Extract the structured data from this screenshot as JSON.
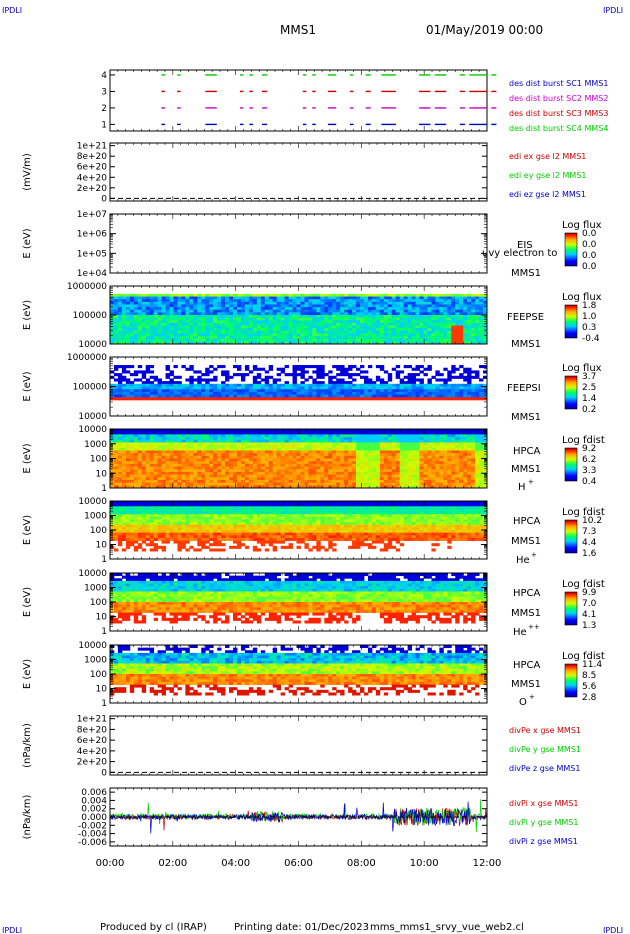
{
  "header": {
    "corner_left": "IPDLI",
    "corner_right": "IPDLI",
    "mission": "MMS1",
    "datetime": "01/May/2019 00:00"
  },
  "footer": {
    "produced_by": "Produced by cl (IRAP)",
    "printing_date": "Printing date: 01/Dec/2023",
    "filename": "mms_mms1_srvy_vue_web2.cl",
    "corner_left": "IPDLI",
    "corner_right": "IPDLI"
  },
  "colors": {
    "blue": "#0000cc",
    "magenta": "#cc00cc",
    "red": "#cc0000",
    "green": "#00cc00",
    "black": "#000000"
  },
  "chart_data": [
    {
      "type": "line",
      "panel": "burst",
      "ytick_labels": [
        "4",
        "3",
        "2",
        "1"
      ],
      "yticks": [
        4,
        3,
        2,
        1
      ],
      "ylim": [
        0.6,
        4.3
      ],
      "legend": [
        {
          "name": "des dist burst SC1 MMS1",
          "color": "#0000cc"
        },
        {
          "name": "des dist burst SC2 MMS2",
          "color": "#cc00cc"
        },
        {
          "name": "des dist burst SC3 MMS3",
          "color": "#cc0000"
        },
        {
          "name": "des dist burst SC4 MMS4",
          "color": "#00cc00"
        }
      ],
      "burst_intervals_hours": [
        [
          1.0,
          1.05
        ],
        [
          1.5,
          1.55
        ],
        [
          2.4,
          2.7
        ],
        [
          3.5,
          3.55
        ],
        [
          3.8,
          3.85
        ],
        [
          4.2,
          4.3
        ],
        [
          5.5,
          5.55
        ],
        [
          5.8,
          5.85
        ],
        [
          6.3,
          6.5
        ],
        [
          7.0,
          7.05
        ],
        [
          7.5,
          7.6
        ],
        [
          8.0,
          8.4
        ],
        [
          9.2,
          9.5
        ],
        [
          9.7,
          10.0
        ],
        [
          10.5,
          10.6
        ],
        [
          10.8,
          11.3
        ],
        [
          11.5,
          11.6
        ]
      ]
    },
    {
      "type": "line",
      "panel": "edi",
      "ylabel": "(mV/m)",
      "ytick_labels": [
        "1e+21",
        "8e+20",
        "6e+20",
        "4e+20",
        "2e+20",
        "0"
      ],
      "yticks": [
        1e+21,
        8e+20,
        6e+20,
        4e+20,
        2e+20,
        0
      ],
      "ylim": [
        -5e+19,
        1.05e+21
      ],
      "legend": [
        {
          "name": "edi ex gse l2 MMS1",
          "color": "#cc0000"
        },
        {
          "name": "edi ey gse l2 MMS1",
          "color": "#00cc00"
        },
        {
          "name": "edi ez gse l2 MMS1",
          "color": "#0000cc"
        }
      ]
    },
    {
      "type": "heatmap",
      "panel": "eis",
      "ylabel": "E (eV)",
      "ytick_labels": [
        "1e+07",
        "1e+06",
        "1e+05",
        "1e+04"
      ],
      "yticks": [
        10000000.0,
        1000000.0,
        100000.0,
        10000.0
      ],
      "instrument": "EIS",
      "overlay_text": "uvy electron to",
      "spacecraft": "MMS1",
      "colorbar_title": "Log flux",
      "colorbar_ticks": [
        "0.0",
        "0.0",
        "0.0",
        "0.0"
      ]
    },
    {
      "type": "heatmap",
      "panel": "feepse",
      "ylabel": "E (eV)",
      "ytick_labels": [
        "1000000",
        "100000",
        "10000"
      ],
      "yticks": [
        1000000.0,
        100000.0,
        10000.0
      ],
      "instrument": "FEEPSE",
      "spacecraft": "MMS1",
      "colorbar_title": "Log flux",
      "colorbar_ticks": [
        "1.8",
        "1.0",
        "0.3",
        "-0.4"
      ]
    },
    {
      "type": "heatmap",
      "panel": "feepsi",
      "ylabel": "E (eV)",
      "ytick_labels": [
        "1000000",
        "100000",
        "10000"
      ],
      "yticks": [
        1000000.0,
        100000.0,
        10000.0
      ],
      "instrument": "FEEPSI",
      "spacecraft": "MMS1",
      "colorbar_title": "Log flux",
      "colorbar_ticks": [
        "3.7",
        "2.5",
        "1.4",
        "0.2"
      ]
    },
    {
      "type": "heatmap",
      "panel": "hpca-h",
      "ylabel": "E (eV)",
      "ytick_labels": [
        "10000",
        "1000",
        "100",
        "10",
        "1"
      ],
      "yticks": [
        10000,
        1000,
        100,
        10,
        1
      ],
      "instrument": "HPCA",
      "spacecraft": "MMS1",
      "species": "H",
      "species_sup": "+",
      "colorbar_title": "Log fdist",
      "colorbar_ticks": [
        "9.2",
        "6.2",
        "3.3",
        "0.4"
      ]
    },
    {
      "type": "heatmap",
      "panel": "hpca-he",
      "ylabel": "E (eV)",
      "ytick_labels": [
        "10000",
        "1000",
        "100",
        "10",
        "1"
      ],
      "yticks": [
        10000,
        1000,
        100,
        10,
        1
      ],
      "instrument": "HPCA",
      "spacecraft": "MMS1",
      "species": "He",
      "species_sup": "+",
      "colorbar_title": "Log fdist",
      "colorbar_ticks": [
        "10.2",
        "7.3",
        "4.4",
        "1.6"
      ]
    },
    {
      "type": "heatmap",
      "panel": "hpca-hepp",
      "ylabel": "E (eV)",
      "ytick_labels": [
        "10000",
        "1000",
        "100",
        "10",
        "1"
      ],
      "yticks": [
        10000,
        1000,
        100,
        10,
        1
      ],
      "instrument": "HPCA",
      "spacecraft": "MMS1",
      "species": "He",
      "species_sup": "++",
      "colorbar_title": "Log fdist",
      "colorbar_ticks": [
        "9.9",
        "7.0",
        "4.1",
        "1.3"
      ]
    },
    {
      "type": "heatmap",
      "panel": "hpca-o",
      "ylabel": "E (eV)",
      "ytick_labels": [
        "10000",
        "1000",
        "100",
        "10",
        "1"
      ],
      "yticks": [
        10000,
        1000,
        100,
        10,
        1
      ],
      "instrument": "HPCA",
      "spacecraft": "MMS1",
      "species": "O",
      "species_sup": "+",
      "colorbar_title": "Log fdist",
      "colorbar_ticks": [
        "11.4",
        "8.5",
        "5.6",
        "2.8"
      ]
    },
    {
      "type": "line",
      "panel": "divpe",
      "ylabel": "(nPa/km)",
      "ytick_labels": [
        "1e+21",
        "8e+20",
        "6e+20",
        "4e+20",
        "2e+20",
        "0"
      ],
      "yticks": [
        1e+21,
        8e+20,
        6e+20,
        4e+20,
        2e+20,
        0
      ],
      "ylim": [
        -5e+19,
        1.05e+21
      ],
      "legend": [
        {
          "name": "divPe x gse MMS1",
          "color": "#cc0000"
        },
        {
          "name": "divPe y gse MMS1",
          "color": "#00cc00"
        },
        {
          "name": "divPe z gse MMS1",
          "color": "#0000cc"
        }
      ]
    },
    {
      "type": "line",
      "panel": "divpi",
      "ylabel": "(nPa/km)",
      "ytick_labels": [
        "0.006",
        "0.004",
        "0.002",
        "0.000",
        "-0.002",
        "-0.004",
        "-0.006"
      ],
      "yticks": [
        0.006,
        0.004,
        0.002,
        0.0,
        -0.002,
        -0.004,
        -0.006
      ],
      "ylim": [
        -0.007,
        0.007
      ],
      "legend": [
        {
          "name": "divPi x gse MMS1",
          "color": "#cc0000"
        },
        {
          "name": "divPi y gse MMS1",
          "color": "#00cc00"
        },
        {
          "name": "divPi z gse MMS1",
          "color": "#0000cc"
        }
      ]
    }
  ],
  "x_axis": {
    "tick_labels": [
      "00:00",
      "02:00",
      "04:00",
      "06:00",
      "08:00",
      "10:00",
      "12:00"
    ],
    "xlim_hours": [
      0,
      12
    ]
  }
}
